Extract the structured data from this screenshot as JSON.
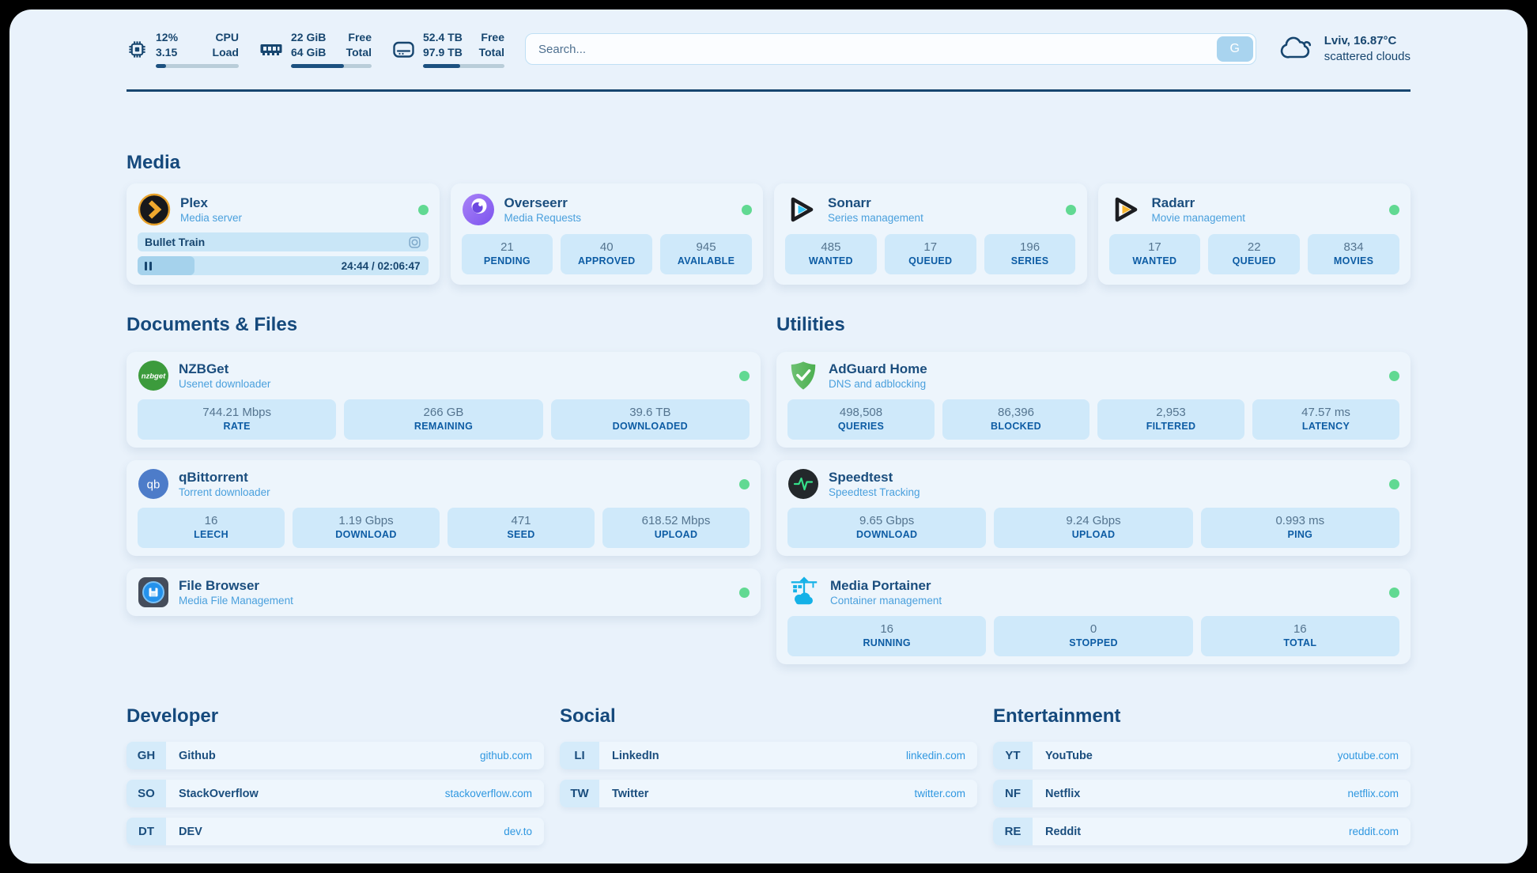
{
  "header": {
    "stats": [
      {
        "icon": "cpu-icon",
        "row1_value": "12%",
        "row1_label": "CPU",
        "row2_value": "3.15",
        "row2_label": "Load",
        "bar_percent": 12
      },
      {
        "icon": "ram-icon",
        "row1_value": "22 GiB",
        "row1_label": "Free",
        "row2_value": "64 GiB",
        "row2_label": "Total",
        "bar_percent": 66
      },
      {
        "icon": "disk-icon",
        "row1_value": "52.4 TB",
        "row1_label": "Free",
        "row2_value": "97.9 TB",
        "row2_label": "Total",
        "bar_percent": 46
      }
    ],
    "search": {
      "placeholder": "Search...",
      "button_label": "G"
    },
    "weather": {
      "summary": "Lviv, 16.87°C",
      "condition": "scattered clouds"
    }
  },
  "media": {
    "heading": "Media",
    "plex": {
      "name": "Plex",
      "desc": "Media server",
      "now_playing": "Bullet Train",
      "time": "24:44 / 02:06:47",
      "progress_percent": 19.5
    },
    "overseerr": {
      "name": "Overseerr",
      "desc": "Media Requests",
      "stats": [
        {
          "value": "21",
          "label": "PENDING"
        },
        {
          "value": "40",
          "label": "APPROVED"
        },
        {
          "value": "945",
          "label": "AVAILABLE"
        }
      ]
    },
    "sonarr": {
      "name": "Sonarr",
      "desc": "Series management",
      "stats": [
        {
          "value": "485",
          "label": "WANTED"
        },
        {
          "value": "17",
          "label": "QUEUED"
        },
        {
          "value": "196",
          "label": "SERIES"
        }
      ]
    },
    "radarr": {
      "name": "Radarr",
      "desc": "Movie management",
      "stats": [
        {
          "value": "17",
          "label": "WANTED"
        },
        {
          "value": "22",
          "label": "QUEUED"
        },
        {
          "value": "834",
          "label": "MOVIES"
        }
      ]
    }
  },
  "documents": {
    "heading": "Documents & Files",
    "nzbget": {
      "name": "NZBGet",
      "desc": "Usenet downloader",
      "icon_text": "nzbget",
      "stats": [
        {
          "value": "744.21 Mbps",
          "label": "RATE"
        },
        {
          "value": "266 GB",
          "label": "REMAINING"
        },
        {
          "value": "39.6 TB",
          "label": "DOWNLOADED"
        }
      ]
    },
    "qbittorrent": {
      "name": "qBittorrent",
      "desc": "Torrent downloader",
      "icon_text": "qb",
      "stats": [
        {
          "value": "16",
          "label": "LEECH"
        },
        {
          "value": "1.19 Gbps",
          "label": "DOWNLOAD"
        },
        {
          "value": "471",
          "label": "SEED"
        },
        {
          "value": "618.52 Mbps",
          "label": "UPLOAD"
        }
      ]
    },
    "filebrowser": {
      "name": "File Browser",
      "desc": "Media File Management"
    }
  },
  "utilities": {
    "heading": "Utilities",
    "adguard": {
      "name": "AdGuard Home",
      "desc": "DNS and adblocking",
      "stats": [
        {
          "value": "498,508",
          "label": "QUERIES"
        },
        {
          "value": "86,396",
          "label": "BLOCKED"
        },
        {
          "value": "2,953",
          "label": "FILTERED"
        },
        {
          "value": "47.57 ms",
          "label": "LATENCY"
        }
      ]
    },
    "speedtest": {
      "name": "Speedtest",
      "desc": "Speedtest Tracking",
      "stats": [
        {
          "value": "9.65 Gbps",
          "label": "DOWNLOAD"
        },
        {
          "value": "9.24 Gbps",
          "label": "UPLOAD"
        },
        {
          "value": "0.993 ms",
          "label": "PING"
        }
      ]
    },
    "portainer": {
      "name": "Media Portainer",
      "desc": "Container management",
      "stats": [
        {
          "value": "16",
          "label": "RUNNING"
        },
        {
          "value": "0",
          "label": "STOPPED"
        },
        {
          "value": "16",
          "label": "TOTAL"
        }
      ]
    }
  },
  "links": {
    "developer": {
      "heading": "Developer",
      "items": [
        {
          "badge": "GH",
          "name": "Github",
          "url": "github.com"
        },
        {
          "badge": "SO",
          "name": "StackOverflow",
          "url": "stackoverflow.com"
        },
        {
          "badge": "DT",
          "name": "DEV",
          "url": "dev.to"
        }
      ]
    },
    "social": {
      "heading": "Social",
      "items": [
        {
          "badge": "LI",
          "name": "LinkedIn",
          "url": "linkedin.com"
        },
        {
          "badge": "TW",
          "name": "Twitter",
          "url": "twitter.com"
        }
      ]
    },
    "entertainment": {
      "heading": "Entertainment",
      "items": [
        {
          "badge": "YT",
          "name": "YouTube",
          "url": "youtube.com"
        },
        {
          "badge": "NF",
          "name": "Netflix",
          "url": "netflix.com"
        },
        {
          "badge": "RE",
          "name": "Reddit",
          "url": "reddit.com"
        }
      ]
    }
  },
  "colors": {
    "page_bg": "#e9f2fb",
    "card_bg": "#edf5fc",
    "stat_box_bg": "#cfe9fa",
    "navy": "#17466f",
    "title": "#1b4e7e",
    "subtitle": "#4aa0dd",
    "stat_label": "#0d5ca4",
    "stat_value": "#54748f",
    "status_green": "#61d992",
    "link_blue": "#2f97e0"
  }
}
